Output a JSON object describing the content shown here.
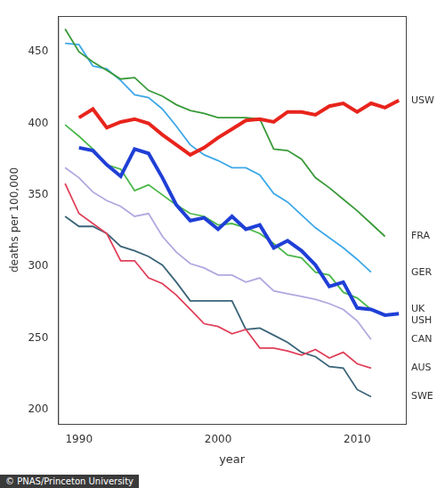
{
  "chart_data": {
    "type": "line",
    "x_label": "year",
    "y_label": "deaths per 100,000",
    "annotations": [
      "© PNAS/Princeton University"
    ],
    "x": [
      1989,
      1990,
      1991,
      1992,
      1993,
      1994,
      1995,
      1996,
      1997,
      1998,
      1999,
      2000,
      2001,
      2002,
      2003,
      2004,
      2005,
      2006,
      2007,
      2008,
      2009,
      2010,
      2011,
      2012,
      2013
    ],
    "xlim": [
      1988.5,
      2013.5
    ],
    "xticks": [
      1990,
      2000,
      2010
    ],
    "ylim": [
      190,
      475
    ],
    "yticks": [
      200,
      250,
      300,
      350,
      400,
      450
    ],
    "grid": false,
    "series": [
      {
        "name": "USW",
        "color": "#e8241c",
        "line_style": "bold",
        "values": [
          null,
          404,
          410,
          397,
          401,
          403,
          400,
          392,
          385,
          378,
          383,
          390,
          396,
          402,
          403,
          401,
          408,
          408,
          406,
          412,
          414,
          408,
          414,
          411,
          416
        ]
      },
      {
        "name": "FRA",
        "color": "#3a9a3a",
        "line_style": "solid",
        "values": [
          466,
          450,
          443,
          437,
          431,
          432,
          423,
          419,
          413,
          409,
          407,
          404,
          404,
          404,
          403,
          382,
          381,
          375,
          362,
          355,
          347,
          339,
          330,
          321,
          null
        ]
      },
      {
        "name": "GER",
        "color": "#3ea8e8",
        "line_style": "solid",
        "values": [
          456,
          455,
          440,
          438,
          430,
          420,
          418,
          410,
          398,
          385,
          378,
          374,
          369,
          369,
          364,
          351,
          345,
          336,
          327,
          320,
          313,
          305,
          296,
          null,
          null
        ]
      },
      {
        "name": "USH",
        "color": "#1f3fd6",
        "line_style": "bold",
        "values": [
          null,
          383,
          381,
          371,
          363,
          382,
          379,
          362,
          343,
          332,
          334,
          326,
          335,
          326,
          329,
          313,
          318,
          311,
          301,
          286,
          289,
          271,
          270,
          266,
          267
        ]
      },
      {
        "name": "UK",
        "color": "#4cb84c",
        "line_style": "solid",
        "values": [
          399,
          391,
          382,
          371,
          368,
          353,
          357,
          350,
          343,
          337,
          335,
          329,
          330,
          327,
          323,
          316,
          308,
          306,
          296,
          294,
          282,
          278,
          270,
          null,
          null
        ]
      },
      {
        "name": "CAN",
        "color": "#b0a8e0",
        "line_style": "solid",
        "values": [
          369,
          362,
          352,
          346,
          342,
          335,
          337,
          321,
          310,
          302,
          299,
          294,
          294,
          289,
          292,
          283,
          281,
          279,
          277,
          274,
          270,
          262,
          249,
          null,
          null
        ]
      },
      {
        "name": "AUS",
        "color": "#e0405a",
        "line_style": "solid",
        "values": [
          358,
          337,
          330,
          323,
          304,
          304,
          292,
          288,
          280,
          270,
          260,
          258,
          253,
          256,
          243,
          243,
          241,
          238,
          242,
          236,
          240,
          232,
          229,
          null,
          null
        ]
      },
      {
        "name": "SWE",
        "color": "#3a6478",
        "line_style": "solid",
        "values": [
          335,
          328,
          328,
          323,
          314,
          311,
          307,
          301,
          289,
          276,
          276,
          276,
          276,
          256,
          257,
          252,
          247,
          240,
          237,
          230,
          229,
          214,
          209,
          null,
          null
        ]
      }
    ]
  }
}
